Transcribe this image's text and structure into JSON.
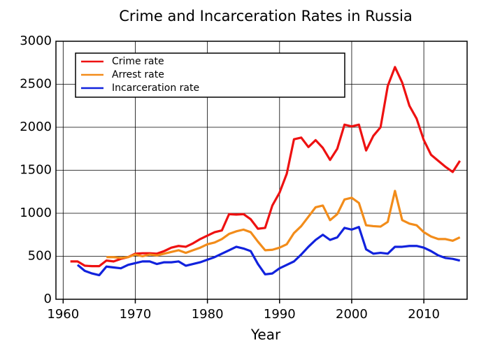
{
  "chart_data": {
    "type": "line",
    "title": "Crime and Incarceration Rates in Russia",
    "x_label": "Year",
    "x": [
      1961,
      1962,
      1963,
      1964,
      1965,
      1966,
      1967,
      1968,
      1969,
      1970,
      1971,
      1972,
      1973,
      1974,
      1975,
      1976,
      1977,
      1978,
      1979,
      1980,
      1981,
      1982,
      1983,
      1984,
      1985,
      1986,
      1987,
      1988,
      1989,
      1990,
      1991,
      1992,
      1993,
      1994,
      1995,
      1996,
      1997,
      1998,
      1999,
      2000,
      2001,
      2002,
      2003,
      2004,
      2005,
      2006,
      2007,
      2008,
      2009,
      2010,
      2011,
      2012,
      2013,
      2014,
      2015
    ],
    "series": [
      {
        "name": "Crime rate",
        "color": "#ee1111",
        "values": [
          440,
          440,
          390,
          385,
          385,
          450,
          440,
          470,
          490,
          530,
          535,
          535,
          530,
          560,
          600,
          620,
          610,
          650,
          700,
          740,
          780,
          800,
          990,
          985,
          990,
          930,
          820,
          830,
          1090,
          1240,
          1460,
          1860,
          1880,
          1770,
          1850,
          1760,
          1620,
          1750,
          2030,
          2010,
          2030,
          1730,
          1900,
          2000,
          2480,
          2700,
          2520,
          2250,
          2100,
          1850,
          1680,
          1610,
          1540,
          1480,
          1610
        ]
      },
      {
        "name": "Arrest rate",
        "color": "#f28c1a",
        "values": [
          null,
          null,
          null,
          null,
          null,
          490,
          490,
          480,
          490,
          520,
          500,
          520,
          510,
          530,
          550,
          570,
          540,
          570,
          600,
          640,
          660,
          700,
          760,
          790,
          810,
          780,
          670,
          570,
          575,
          600,
          640,
          770,
          850,
          960,
          1070,
          1090,
          920,
          990,
          1160,
          1180,
          1120,
          860,
          850,
          845,
          900,
          1260,
          920,
          880,
          860,
          780,
          730,
          700,
          700,
          680,
          720
        ]
      },
      {
        "name": "Incarceration rate",
        "color": "#1122dd",
        "values": [
          null,
          400,
          330,
          300,
          280,
          380,
          370,
          360,
          400,
          420,
          440,
          440,
          410,
          430,
          430,
          440,
          390,
          410,
          430,
          460,
          490,
          530,
          570,
          610,
          590,
          560,
          410,
          290,
          300,
          360,
          400,
          440,
          520,
          610,
          690,
          750,
          690,
          720,
          830,
          810,
          840,
          580,
          530,
          540,
          530,
          610,
          610,
          620,
          620,
          600,
          560,
          510,
          480,
          470,
          450
        ]
      }
    ],
    "xlim": [
      1959,
      2016
    ],
    "ylim": [
      0,
      3000
    ],
    "xticks": [
      1960,
      1970,
      1980,
      1990,
      2000,
      2010
    ],
    "yticks": [
      0,
      500,
      1000,
      1500,
      2000,
      2500,
      3000
    ],
    "grid": true,
    "legend": "upper left"
  }
}
